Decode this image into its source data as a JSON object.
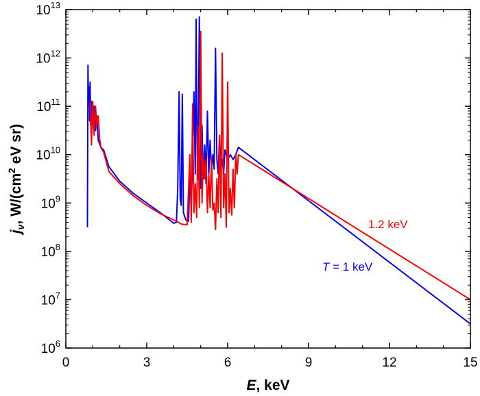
{
  "chart_data": {
    "type": "line",
    "xlabel": {
      "var": "E",
      "unit": ", keV"
    },
    "ylabel": {
      "var": "j",
      "sub": "ν",
      "unit_a": ", W/(cm",
      "sup": "2",
      "unit_b": " eV sr)"
    },
    "xlim": [
      0,
      15
    ],
    "ylim_log10": [
      6,
      13
    ],
    "y_scale": "log",
    "grid": false,
    "x_ticks": [
      "0",
      "3",
      "6",
      "9",
      "12",
      "15"
    ],
    "y_ticks": [
      {
        "base": "10",
        "exp": "6"
      },
      {
        "base": "10",
        "exp": "7"
      },
      {
        "base": "10",
        "exp": "8"
      },
      {
        "base": "10",
        "exp": "9"
      },
      {
        "base": "10",
        "exp": "10"
      },
      {
        "base": "10",
        "exp": "11"
      },
      {
        "base": "10",
        "exp": "12"
      },
      {
        "base": "10",
        "exp": "13"
      }
    ],
    "series": [
      {
        "name": "T = 1 keV",
        "label": {
          "var": "T",
          "rest": " = 1 keV"
        },
        "color": "#0000ff",
        "points": [
          [
            0.8,
            8.5
          ],
          [
            0.82,
            11.85
          ],
          [
            0.84,
            11.1
          ],
          [
            0.86,
            11.4
          ],
          [
            0.88,
            10.7
          ],
          [
            0.9,
            11.5
          ],
          [
            0.92,
            10.65
          ],
          [
            0.95,
            11.1
          ],
          [
            1.0,
            10.6
          ],
          [
            1.05,
            11.0
          ],
          [
            1.1,
            10.5
          ],
          [
            1.15,
            10.8
          ],
          [
            1.2,
            10.3
          ],
          [
            1.3,
            10.15
          ],
          [
            1.4,
            10.1
          ],
          [
            1.6,
            9.75
          ],
          [
            2.0,
            9.45
          ],
          [
            2.5,
            9.2
          ],
          [
            3.0,
            9.0
          ],
          [
            3.5,
            8.8
          ],
          [
            4.0,
            8.58
          ],
          [
            4.1,
            8.6
          ],
          [
            4.15,
            9.3
          ],
          [
            4.2,
            11.3
          ],
          [
            4.24,
            9.1
          ],
          [
            4.28,
            8.95
          ],
          [
            4.32,
            11.25
          ],
          [
            4.36,
            8.8
          ],
          [
            4.45,
            8.65
          ],
          [
            4.55,
            8.62
          ],
          [
            4.6,
            9.6
          ],
          [
            4.65,
            8.9
          ],
          [
            4.7,
            9.9
          ],
          [
            4.75,
            11.3
          ],
          [
            4.8,
            9.6
          ],
          [
            4.83,
            12.8
          ],
          [
            4.87,
            10.0
          ],
          [
            4.9,
            9.5
          ],
          [
            4.95,
            12.85
          ],
          [
            5.0,
            9.3
          ],
          [
            5.05,
            10.6
          ],
          [
            5.1,
            9.5
          ],
          [
            5.15,
            10.2
          ],
          [
            5.2,
            9.4
          ],
          [
            5.25,
            10.9
          ],
          [
            5.3,
            9.6
          ],
          [
            5.35,
            10.3
          ],
          [
            5.4,
            9.7
          ],
          [
            5.45,
            10.0
          ],
          [
            5.5,
            9.7
          ],
          [
            5.55,
            12.2
          ],
          [
            5.6,
            9.9
          ],
          [
            5.65,
            9.6
          ],
          [
            5.7,
            10.4
          ],
          [
            5.75,
            9.7
          ],
          [
            5.8,
            9.9
          ],
          [
            5.85,
            9.6
          ],
          [
            5.9,
            10.1
          ],
          [
            6.0,
            9.9
          ],
          [
            6.1,
            10.0
          ],
          [
            6.2,
            9.9
          ],
          [
            6.3,
            10.0
          ],
          [
            6.4,
            10.15
          ],
          [
            15.0,
            6.5
          ]
        ]
      },
      {
        "name": "1.2 keV",
        "label": {
          "var": "",
          "rest": "1.2 keV"
        },
        "color": "#ff0000",
        "points": [
          [
            0.9,
            11.1
          ],
          [
            0.95,
            10.2
          ],
          [
            1.0,
            11.1
          ],
          [
            1.05,
            10.4
          ],
          [
            1.1,
            11.0
          ],
          [
            1.15,
            10.6
          ],
          [
            1.2,
            10.8
          ],
          [
            1.25,
            10.35
          ],
          [
            1.3,
            10.15
          ],
          [
            1.4,
            10.05
          ],
          [
            1.6,
            9.65
          ],
          [
            2.0,
            9.4
          ],
          [
            2.5,
            9.15
          ],
          [
            3.0,
            8.95
          ],
          [
            3.5,
            8.78
          ],
          [
            4.0,
            8.65
          ],
          [
            4.3,
            8.56
          ],
          [
            4.5,
            8.55
          ],
          [
            4.6,
            10.0
          ],
          [
            4.65,
            8.6
          ],
          [
            4.7,
            11.05
          ],
          [
            4.75,
            8.8
          ],
          [
            4.8,
            9.4
          ],
          [
            4.85,
            8.7
          ],
          [
            4.9,
            10.6
          ],
          [
            4.95,
            8.9
          ],
          [
            5.0,
            12.55
          ],
          [
            5.05,
            9.0
          ],
          [
            5.1,
            10.0
          ],
          [
            5.15,
            9.5
          ],
          [
            5.2,
            9.9
          ],
          [
            5.25,
            8.8
          ],
          [
            5.3,
            9.6
          ],
          [
            5.35,
            8.9
          ],
          [
            5.4,
            9.95
          ],
          [
            5.45,
            8.85
          ],
          [
            5.5,
            9.0
          ],
          [
            5.55,
            8.45
          ],
          [
            5.6,
            9.5
          ],
          [
            5.65,
            8.8
          ],
          [
            5.7,
            10.4
          ],
          [
            5.75,
            8.7
          ],
          [
            5.8,
            12.1
          ],
          [
            5.85,
            8.9
          ],
          [
            5.9,
            9.6
          ],
          [
            5.95,
            8.5
          ],
          [
            6.0,
            11.5
          ],
          [
            6.05,
            8.8
          ],
          [
            6.1,
            9.3
          ],
          [
            6.15,
            8.75
          ],
          [
            6.2,
            9.7
          ],
          [
            6.25,
            8.9
          ],
          [
            6.3,
            10.0
          ],
          [
            6.35,
            9.6
          ],
          [
            6.4,
            10.0
          ],
          [
            15.0,
            7.0
          ]
        ]
      }
    ]
  },
  "colors": {
    "axis": "#000000",
    "blue": "#0000ff",
    "red": "#ff0000",
    "background": "#ffffff"
  }
}
